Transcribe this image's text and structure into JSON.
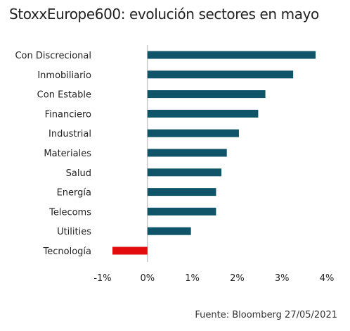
{
  "chart_data": {
    "type": "bar",
    "orientation": "horizontal",
    "title": "StoxxEurope600: evolución sectores en mayo",
    "categories": [
      "Con Discrecional",
      "Inmobiliario",
      "Con Estable",
      "Financiero",
      "Industrial",
      "Materiales",
      "Salud",
      "Energía",
      "Telecoms",
      "Utilities",
      "Tecnología"
    ],
    "series": [
      {
        "values": [
          3.75,
          3.25,
          2.63,
          2.47,
          2.04,
          1.77,
          1.65,
          1.53,
          1.53,
          0.97,
          -0.78
        ]
      }
    ],
    "xlim": [
      -1,
      4
    ],
    "xticks": [
      -1,
      0,
      1,
      2,
      3,
      4
    ],
    "xtick_labels": [
      "-1%",
      "0%",
      "1%",
      "2%",
      "3%",
      "4%"
    ],
    "xlabel": "",
    "ylabel": "",
    "grid": false,
    "colors": {
      "positive": "#0f5469",
      "negative": "#e30b0b",
      "zero_line": "#c8c8c8"
    },
    "source": "Fuente: Bloomberg 27/05/2021"
  }
}
